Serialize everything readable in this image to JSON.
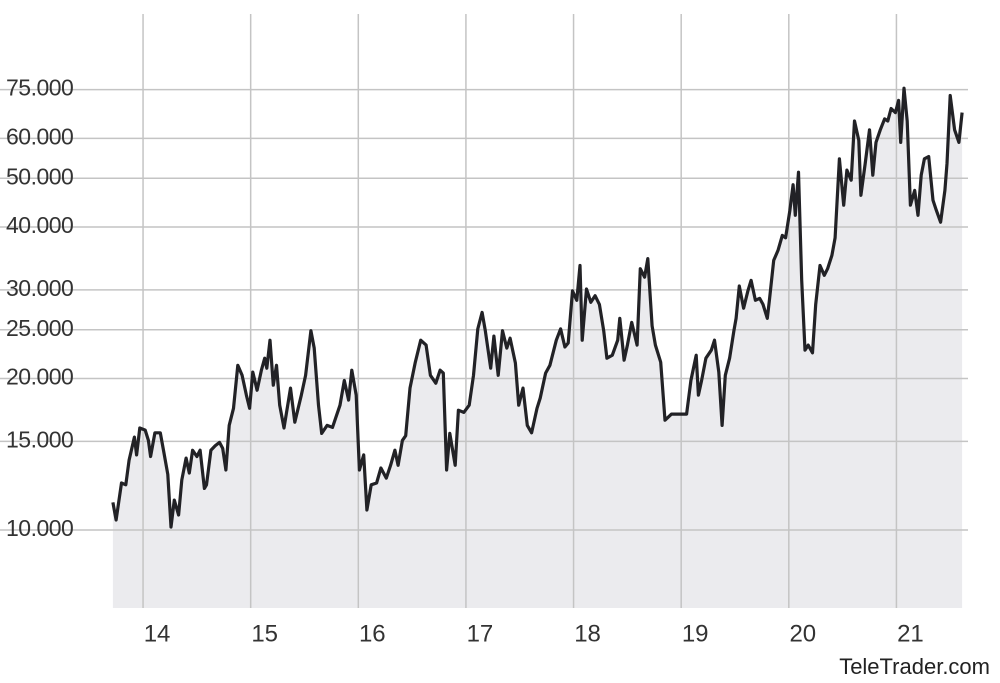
{
  "chart_data": {
    "type": "area",
    "source": "TeleTrader.com",
    "log_scale": true,
    "grid": true,
    "color": "#222226",
    "fill_color": "#ebebee",
    "xlim": [
      13.6,
      21.73
    ],
    "xticks": [
      14,
      15,
      16,
      17,
      18,
      19,
      20,
      21
    ],
    "ylim": [
      7000,
      106000
    ],
    "yticks": [
      {
        "value": 10000,
        "label": "10.000"
      },
      {
        "value": 15000,
        "label": "15.000"
      },
      {
        "value": 20000,
        "label": "20.000"
      },
      {
        "value": 25000,
        "label": "25.000"
      },
      {
        "value": 30000,
        "label": "30.000"
      },
      {
        "value": 40000,
        "label": "40.000"
      },
      {
        "value": 50000,
        "label": "50.000"
      },
      {
        "value": 60000,
        "label": "60.000"
      },
      {
        "value": 75000,
        "label": "75.000"
      }
    ],
    "x": [
      13.72,
      13.75,
      13.8,
      13.84,
      13.87,
      13.92,
      13.94,
      13.97,
      14.02,
      14.05,
      14.07,
      14.11,
      14.16,
      14.19,
      14.23,
      14.26,
      14.29,
      14.33,
      14.36,
      14.4,
      14.43,
      14.46,
      14.5,
      14.53,
      14.57,
      14.59,
      14.63,
      14.67,
      14.71,
      14.74,
      14.77,
      14.8,
      14.84,
      14.88,
      14.92,
      14.96,
      14.99,
      15.02,
      15.06,
      15.1,
      15.13,
      15.15,
      15.18,
      15.21,
      15.24,
      15.27,
      15.31,
      15.37,
      15.41,
      15.47,
      15.51,
      15.56,
      15.59,
      15.63,
      15.66,
      15.71,
      15.76,
      15.79,
      15.83,
      15.87,
      15.91,
      15.94,
      15.98,
      16.01,
      16.05,
      16.08,
      16.12,
      16.17,
      16.21,
      16.26,
      16.3,
      16.34,
      16.37,
      16.41,
      16.44,
      16.48,
      16.53,
      16.58,
      16.63,
      16.67,
      16.72,
      16.76,
      16.79,
      16.82,
      16.85,
      16.9,
      16.93,
      16.98,
      17.03,
      17.07,
      17.11,
      17.15,
      17.18,
      17.23,
      17.26,
      17.3,
      17.34,
      17.38,
      17.41,
      17.46,
      17.49,
      17.53,
      17.57,
      17.61,
      17.66,
      17.69,
      17.74,
      17.78,
      17.84,
      17.88,
      17.92,
      17.95,
      17.99,
      18.03,
      18.06,
      18.08,
      18.12,
      18.16,
      18.2,
      18.24,
      18.28,
      18.31,
      18.36,
      18.41,
      18.43,
      18.47,
      18.5,
      18.54,
      18.59,
      18.62,
      18.66,
      18.69,
      18.73,
      18.76,
      18.81,
      18.85,
      18.91,
      18.97,
      19.01,
      19.05,
      19.09,
      19.14,
      19.16,
      19.19,
      19.23,
      19.28,
      19.31,
      19.35,
      19.38,
      19.41,
      19.45,
      19.49,
      19.51,
      19.54,
      19.58,
      19.62,
      19.65,
      19.69,
      19.73,
      19.76,
      19.8,
      19.82,
      19.86,
      19.9,
      19.94,
      19.97,
      20.01,
      20.04,
      20.06,
      20.09,
      20.12,
      20.15,
      20.18,
      20.22,
      20.25,
      20.29,
      20.33,
      20.36,
      20.4,
      20.43,
      20.47,
      20.51,
      20.54,
      20.58,
      20.61,
      20.65,
      20.67,
      20.71,
      20.75,
      20.78,
      20.81,
      20.85,
      20.89,
      20.92,
      20.95,
      20.99,
      21.02,
      21.04,
      21.07,
      21.1,
      21.13,
      21.17,
      21.2,
      21.23,
      21.26,
      21.3,
      21.34,
      21.37,
      21.41,
      21.45,
      21.47,
      21.5,
      21.54,
      21.58,
      21.61
    ],
    "values": [
      11350,
      10470,
      12400,
      12300,
      13770,
      15300,
      14100,
      15950,
      15800,
      15070,
      14000,
      15600,
      15600,
      14400,
      12900,
      10140,
      11470,
      10710,
      12570,
      13900,
      12980,
      14400,
      14000,
      14410,
      12100,
      12300,
      14410,
      14700,
      14930,
      14530,
      13160,
      16140,
      17450,
      21250,
      20300,
      18530,
      17450,
      20600,
      18960,
      20780,
      21950,
      20970,
      23830,
      19400,
      21250,
      17700,
      15950,
      19140,
      16380,
      18530,
      20300,
      24890,
      22990,
      17700,
      15560,
      16140,
      15990,
      16700,
      17700,
      19820,
      18120,
      20780,
      18530,
      13160,
      14100,
      10960,
      12300,
      12400,
      13280,
      12680,
      13450,
      14410,
      13450,
      15070,
      15400,
      19140,
      21550,
      23830,
      23300,
      20300,
      19580,
      20780,
      20500,
      13160,
      15560,
      13450,
      17300,
      17130,
      17700,
      20300,
      25100,
      27070,
      24890,
      20970,
      24290,
      20300,
      24890,
      22990,
      24050,
      21460,
      17700,
      19140,
      16140,
      15600,
      17450,
      18290,
      20500,
      21250,
      23830,
      25100,
      23100,
      23530,
      29860,
      28600,
      33540,
      23830,
      30130,
      28350,
      29210,
      28080,
      24890,
      21950,
      22250,
      23830,
      26350,
      21750,
      23300,
      25860,
      23300,
      33060,
      31800,
      34620,
      25450,
      23300,
      21550,
      16530,
      17000,
      17000,
      17000,
      17000,
      19820,
      22250,
      18530,
      19820,
      21950,
      22770,
      23830,
      20600,
      16140,
      20300,
      21950,
      24890,
      26350,
      30540,
      27590,
      29860,
      31340,
      28600,
      28850,
      28080,
      26350,
      28600,
      34340,
      35940,
      38500,
      38080,
      43200,
      48540,
      42200,
      51400,
      31340,
      22770,
      23300,
      22500,
      28080,
      33540,
      32070,
      33060,
      35130,
      38080,
      54660,
      44200,
      51900,
      49550,
      64970,
      59450,
      46250,
      53500,
      62400,
      50700,
      58900,
      62400,
      65600,
      64970,
      68800,
      67500,
      71400,
      58900,
      75500,
      64970,
      44200,
      47300,
      42200,
      50700,
      54660,
      55200,
      45200,
      43200,
      40900,
      47300,
      53500,
      73000,
      62400,
      58900,
      67500
    ]
  }
}
